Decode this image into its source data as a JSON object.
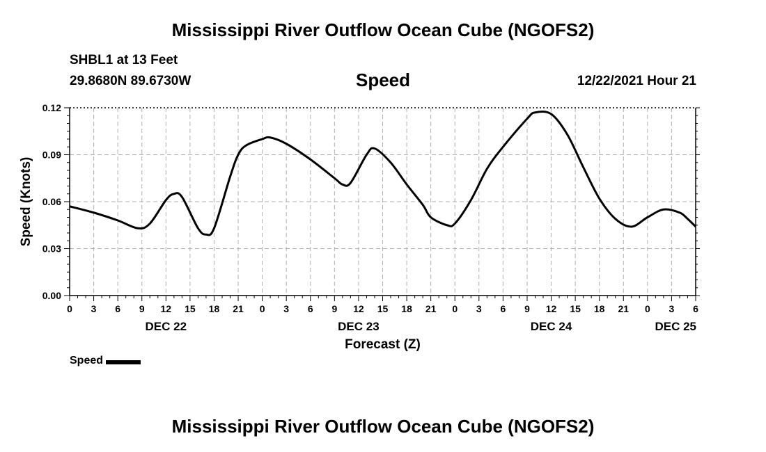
{
  "header": {
    "main_title": "Mississippi River Outflow Ocean Cube (NGOFS2)",
    "station": "SHBL1 at 13 Feet",
    "coords": "29.8680N  89.6730W",
    "chart_title": "Speed",
    "timestamp": "12/22/2021 Hour 21"
  },
  "footer": {
    "title": "Mississippi River Outflow Ocean Cube (NGOFS2)"
  },
  "legend": {
    "label": "Speed"
  },
  "chart_data": {
    "type": "line",
    "ylabel": "Speed (Knots)",
    "xlabel": "Forecast (Z)",
    "ylim": [
      0,
      0.12
    ],
    "yticks": [
      "0.00",
      "0.03",
      "0.06",
      "0.09",
      "0.12"
    ],
    "xlim": [
      0,
      78
    ],
    "xticks": [
      "0",
      "3",
      "6",
      "9",
      "12",
      "15",
      "18",
      "21",
      "0",
      "3",
      "6",
      "9",
      "12",
      "15",
      "18",
      "21",
      "0",
      "3",
      "6",
      "9",
      "12",
      "15",
      "18",
      "21",
      "0",
      "3",
      "6"
    ],
    "day_labels": [
      {
        "label": "DEC 22",
        "x": 12
      },
      {
        "label": "DEC 23",
        "x": 36
      },
      {
        "label": "DEC 24",
        "x": 60
      },
      {
        "label": "DEC 25",
        "x": 78
      }
    ],
    "grid": true,
    "line_color": "#000000",
    "series": [
      {
        "name": "Speed",
        "x": [
          0,
          3,
          6,
          8.5,
          10,
          12,
          13,
          14,
          16,
          17,
          18,
          20,
          21,
          22,
          24,
          25,
          27,
          30,
          33,
          34,
          35,
          37,
          38,
          40,
          42,
          44,
          45,
          47,
          48,
          50,
          52,
          54,
          57,
          58,
          60,
          62,
          64,
          66,
          68,
          70,
          72,
          74,
          76,
          77,
          78
        ],
        "y": [
          0.057,
          0.053,
          0.048,
          0.043,
          0.046,
          0.061,
          0.065,
          0.063,
          0.043,
          0.039,
          0.043,
          0.076,
          0.09,
          0.096,
          0.1,
          0.101,
          0.097,
          0.087,
          0.075,
          0.071,
          0.072,
          0.09,
          0.094,
          0.085,
          0.071,
          0.058,
          0.05,
          0.045,
          0.046,
          0.061,
          0.081,
          0.095,
          0.113,
          0.117,
          0.116,
          0.103,
          0.082,
          0.062,
          0.049,
          0.044,
          0.05,
          0.055,
          0.053,
          0.049,
          0.044
        ]
      }
    ]
  }
}
